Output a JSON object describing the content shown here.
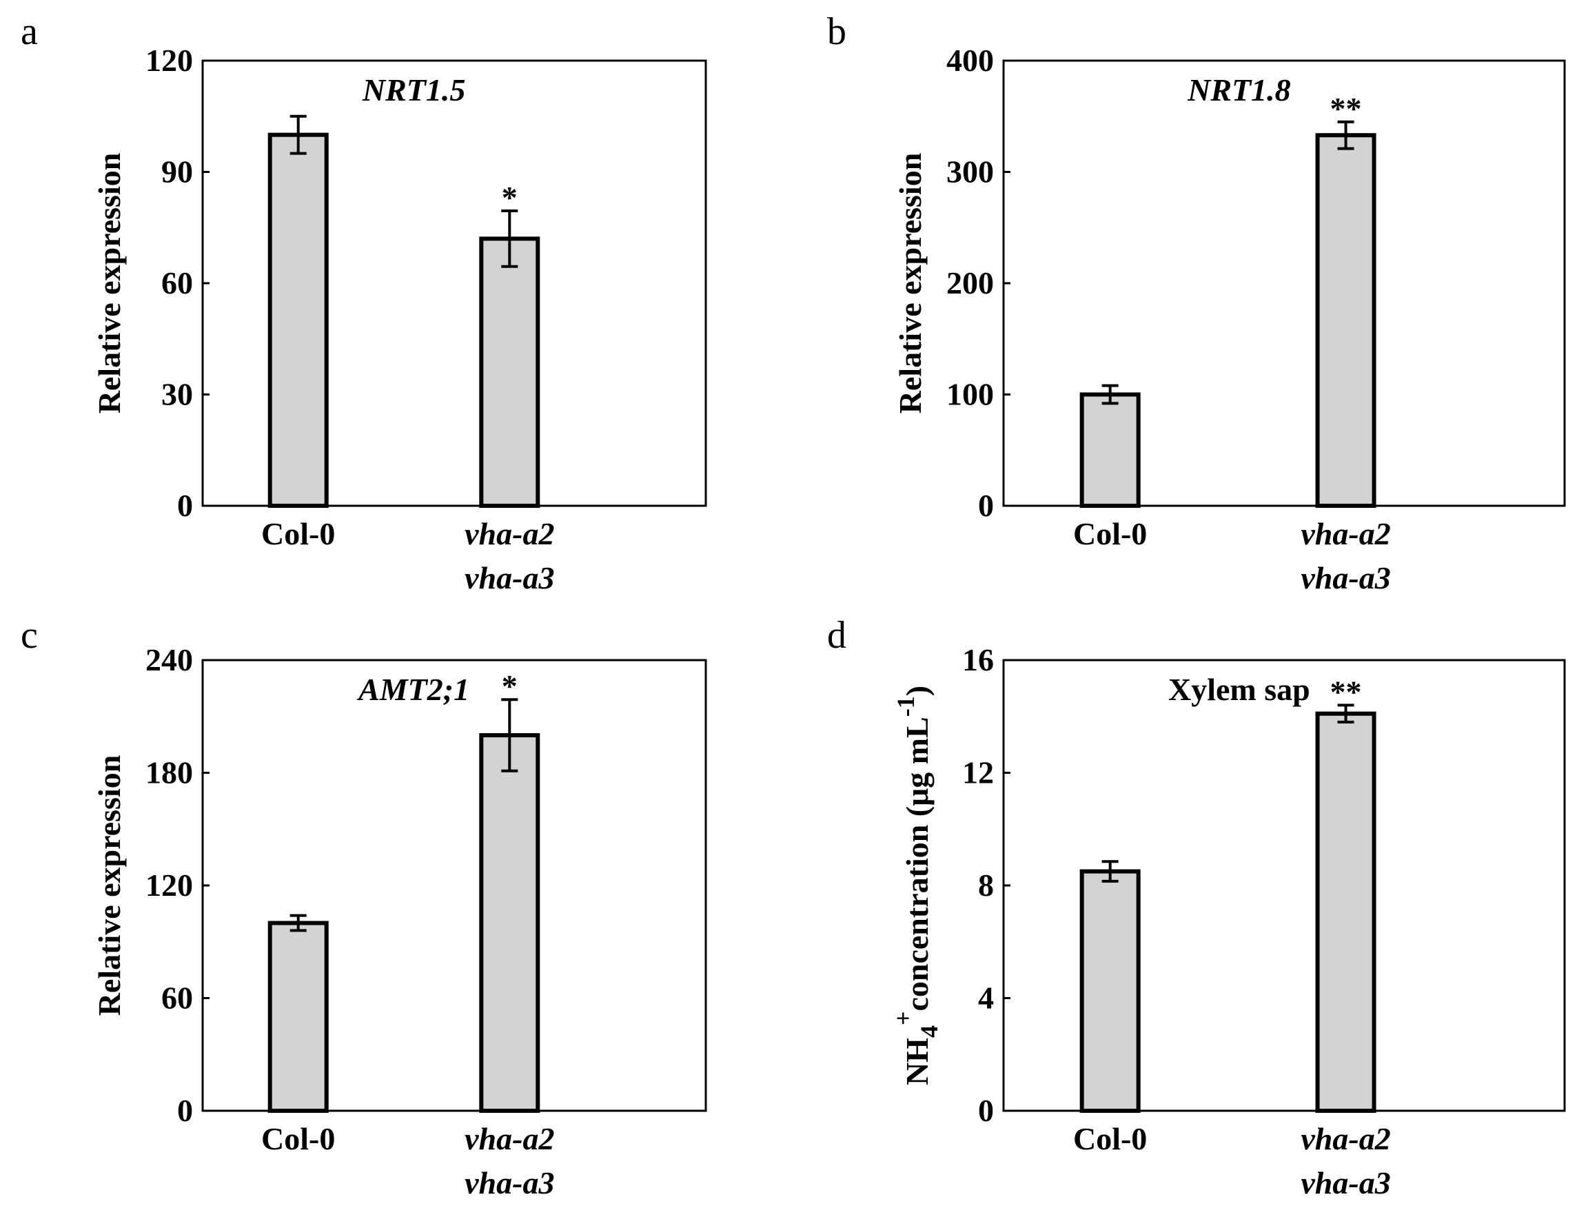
{
  "figure": {
    "panels": [
      {
        "letter": "a"
      },
      {
        "letter": "b"
      },
      {
        "letter": "c"
      },
      {
        "letter": "d"
      }
    ]
  },
  "chart_data": [
    {
      "type": "bar",
      "panel": "a",
      "title": "NRT1.5",
      "title_style": "italic",
      "ylabel": "Relative expression",
      "ylim": [
        0,
        120
      ],
      "yticks": [
        0,
        30,
        60,
        90,
        120
      ],
      "categories": [
        {
          "label": "Col-0",
          "italic": false
        },
        {
          "label": "vha-a2",
          "label2": "vha-a3",
          "italic": true
        }
      ],
      "values": [
        100,
        72
      ],
      "errors": [
        5,
        7.5
      ],
      "significance": [
        "",
        "*"
      ],
      "bar_color": "#d3d3d3"
    },
    {
      "type": "bar",
      "panel": "b",
      "title": "NRT1.8",
      "title_style": "italic",
      "ylabel": "Relative expression",
      "ylim": [
        0,
        400
      ],
      "yticks": [
        0,
        100,
        200,
        300,
        400
      ],
      "categories": [
        {
          "label": "Col-0",
          "italic": false
        },
        {
          "label": "vha-a2",
          "label2": "vha-a3",
          "italic": true
        }
      ],
      "values": [
        100,
        333
      ],
      "errors": [
        8,
        12
      ],
      "significance": [
        "",
        "**"
      ],
      "bar_color": "#d3d3d3"
    },
    {
      "type": "bar",
      "panel": "c",
      "title": "AMT2;1",
      "title_style": "italic",
      "ylabel": "Relative expression",
      "ylim": [
        0,
        240
      ],
      "yticks": [
        0,
        60,
        120,
        180,
        240
      ],
      "categories": [
        {
          "label": "Col-0",
          "italic": false
        },
        {
          "label": "vha-a2",
          "label2": "vha-a3",
          "italic": true
        }
      ],
      "values": [
        100,
        200
      ],
      "errors": [
        4,
        19
      ],
      "significance": [
        "",
        "*"
      ],
      "bar_color": "#d3d3d3"
    },
    {
      "type": "bar",
      "panel": "d",
      "title": "Xylem sap",
      "title_style": "bold",
      "ylabel_parts": {
        "base": "NH",
        "sub": "4",
        "sup": "+",
        "mid": "concentration (μg mL",
        "exp": "-1",
        "end": ")"
      },
      "ylim": [
        0,
        16
      ],
      "yticks": [
        0,
        4,
        8,
        12,
        16
      ],
      "categories": [
        {
          "label": "Col-0",
          "italic": false
        },
        {
          "label": "vha-a2",
          "label2": "vha-a3",
          "italic": true
        }
      ],
      "values": [
        8.5,
        14.1
      ],
      "errors": [
        0.35,
        0.3
      ],
      "significance": [
        "",
        "**"
      ],
      "bar_color": "#d3d3d3"
    }
  ]
}
